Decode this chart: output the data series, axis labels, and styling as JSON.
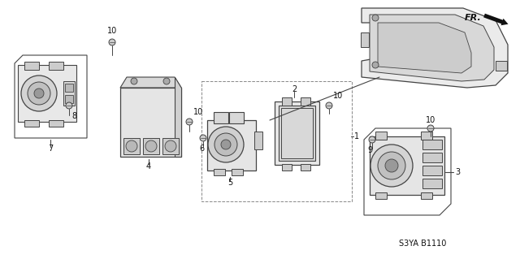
{
  "background_color": "#ffffff",
  "line_color": "#444444",
  "text_color": "#111111",
  "fig_width": 6.4,
  "fig_height": 3.19,
  "dpi": 100,
  "diagram_code": "S3YA B1110"
}
